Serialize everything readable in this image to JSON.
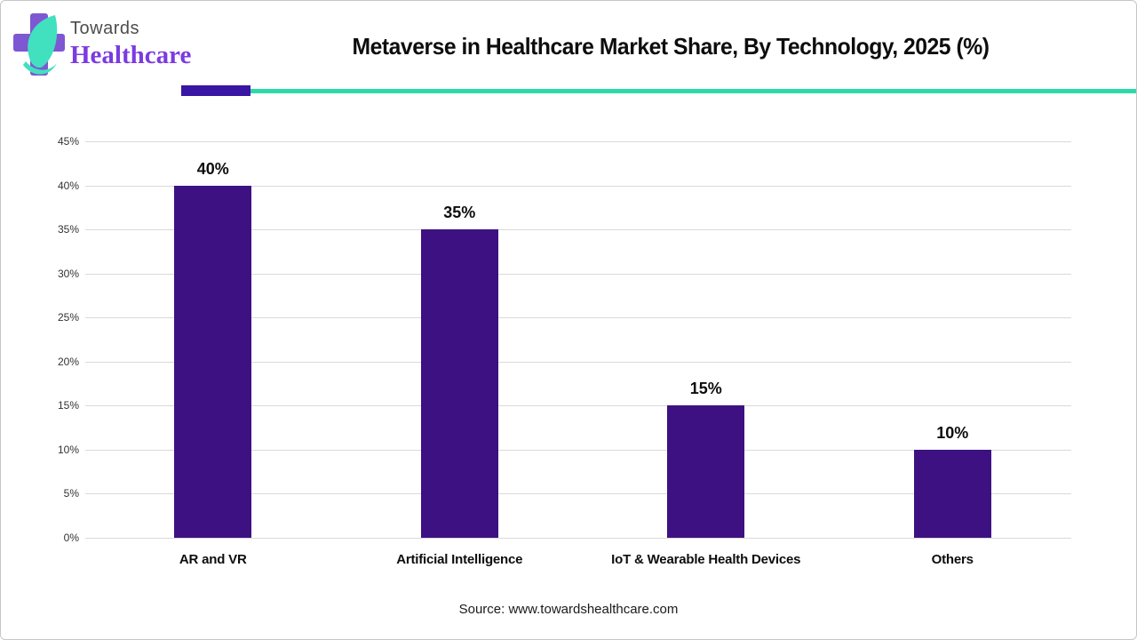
{
  "header": {
    "logo_line1": "Towards",
    "logo_line2": "Healthcare",
    "title": "Metaverse in Healthcare Market Share, By Technology, 2025 (%)"
  },
  "brand_colors": {
    "bar_purple": "#3d1181",
    "divider_purple": "#3a16a5",
    "divider_teal": "#2ed9a9",
    "logo_cross_purple": "#7e57d2",
    "logo_leaf_teal": "#41e0bf",
    "logo_text_purple": "#7b3be0"
  },
  "chart_data": {
    "type": "bar",
    "title": "Metaverse in Healthcare Market Share, By Technology, 2025 (%)",
    "categories": [
      "AR and VR",
      "Artificial Intelligence",
      "IoT & Wearable Health Devices",
      "Others"
    ],
    "values": [
      40,
      35,
      15,
      10
    ],
    "value_labels": [
      "40%",
      "35%",
      "15%",
      "10%"
    ],
    "xlabel": "",
    "ylabel": "",
    "ylim": [
      0,
      45
    ],
    "ytick_step": 5,
    "ytick_labels": [
      "0%",
      "5%",
      "10%",
      "15%",
      "20%",
      "25%",
      "30%",
      "35%",
      "40%",
      "45%"
    ],
    "grid": true,
    "legend": false,
    "bar_color": "#3d1181"
  },
  "footer": {
    "source": "Source: www.towardshealthcare.com"
  }
}
